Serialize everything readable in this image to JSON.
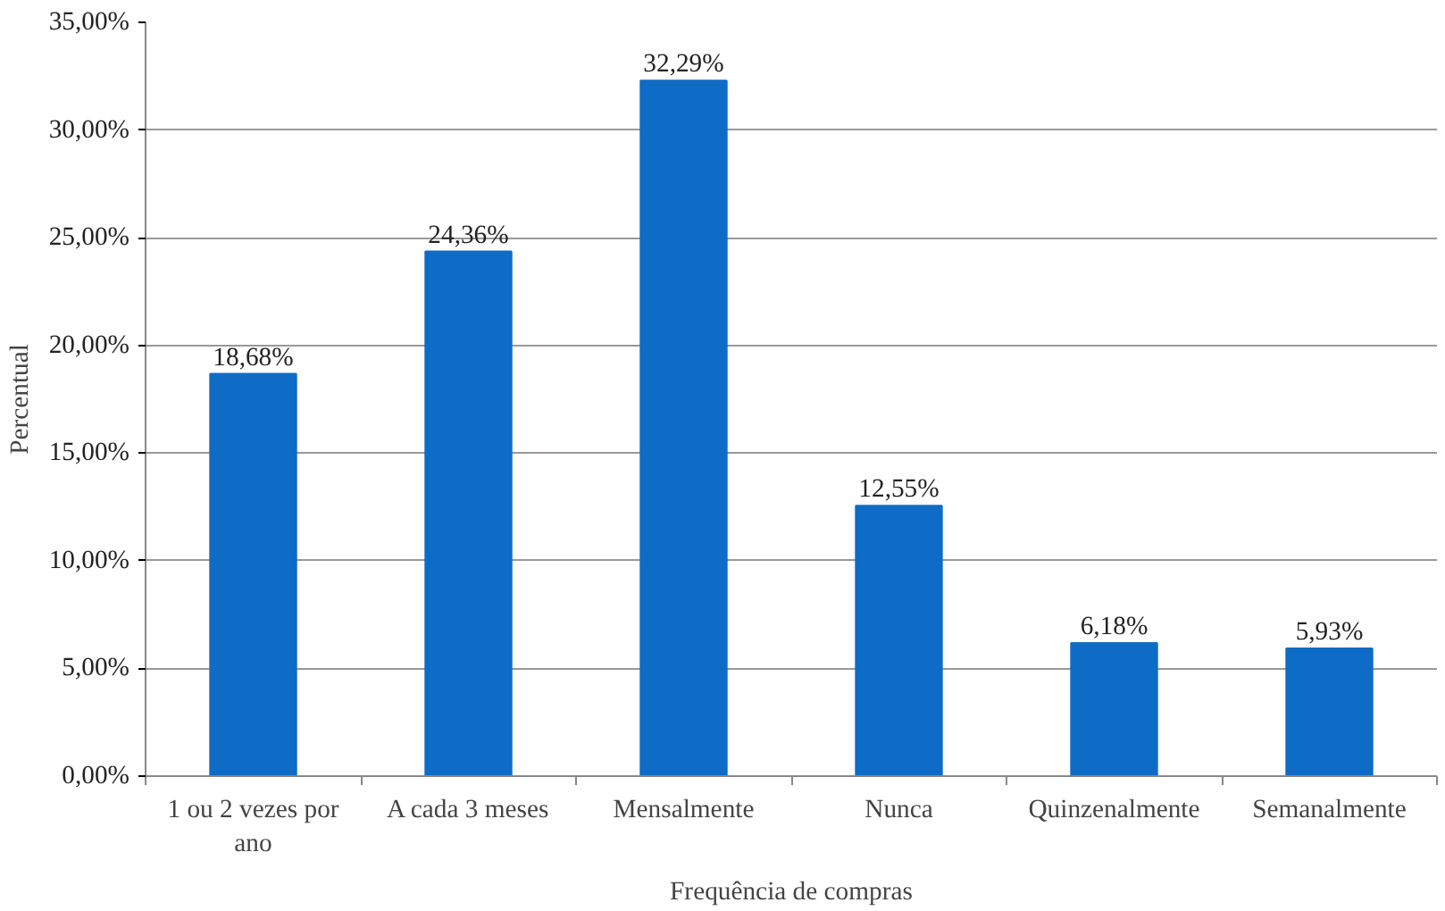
{
  "chart_data": {
    "type": "bar",
    "xlabel": "Frequência de compras",
    "ylabel": "Percentual",
    "categories": [
      "1 ou 2 vezes por ano",
      "A cada 3 meses",
      "Mensalmente",
      "Nunca",
      "Quinzenalmente",
      "Semanalmente"
    ],
    "values": [
      18.68,
      24.36,
      32.29,
      12.55,
      6.18,
      5.93
    ],
    "value_labels": [
      "18,68%",
      "24,36%",
      "32,29%",
      "12,55%",
      "6,18%",
      "5,93%"
    ],
    "color": "#0f6cc6",
    "ylim": [
      0,
      35
    ],
    "yticks": [
      {
        "value": 0,
        "label": "0,00%"
      },
      {
        "value": 5,
        "label": "5,00%"
      },
      {
        "value": 10,
        "label": "10,00%"
      },
      {
        "value": 15,
        "label": "15,00%"
      },
      {
        "value": 20,
        "label": "20,00%"
      },
      {
        "value": 25,
        "label": "25,00%"
      },
      {
        "value": 30,
        "label": "30,00%"
      },
      {
        "value": 35,
        "label": "35,00%"
      }
    ],
    "grid": "y"
  }
}
